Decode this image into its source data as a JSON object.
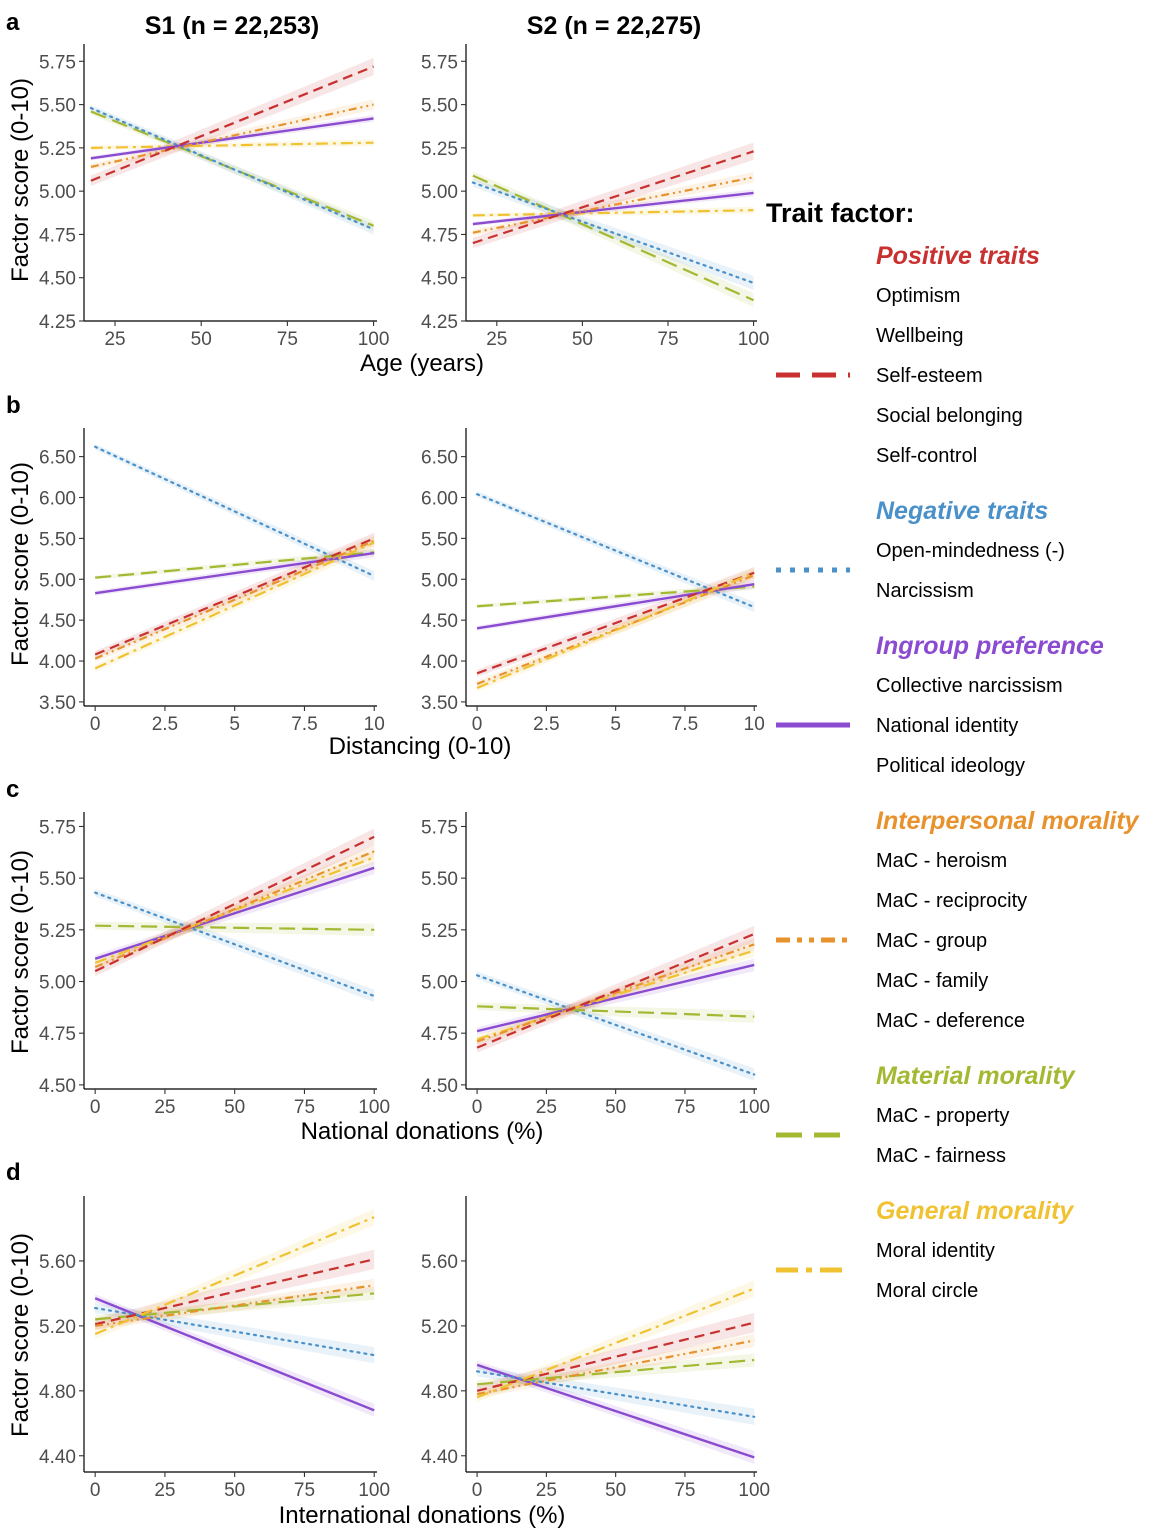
{
  "figure": {
    "columns": [
      "S1 (n = 22,253)",
      "S2 (n = 22,275)"
    ],
    "y_axis_label": "Factor score (0-10)"
  },
  "legend": {
    "title": "Trait factor:",
    "groups": [
      {
        "name": "Positive traits",
        "color": "#c8312f",
        "dash": "long-dash",
        "items": [
          "Optimism",
          "Wellbeing",
          "Self-esteem",
          "Social belonging",
          "Self-control"
        ]
      },
      {
        "name": "Negative traits",
        "color": "#4a90c9",
        "dash": "dotted",
        "items": [
          "Open-mindedness  (-)",
          "Narcissism"
        ]
      },
      {
        "name": "Ingroup preference",
        "color": "#8a4bd0",
        "dash": "solid",
        "items": [
          "Collective narcissism",
          "National identity",
          "Political ideology"
        ]
      },
      {
        "name": "Interpersonal morality",
        "color": "#e8922e",
        "dash": "dash-dot-dot",
        "items": [
          "MaC -  heroism",
          "MaC -  reciprocity",
          "MaC -  group",
          "MaC -  family",
          "MaC -  deference"
        ]
      },
      {
        "name": "Material morality",
        "color": "#a4b832",
        "dash": "very-long-dash",
        "items": [
          "MaC -  property",
          "MaC -  fairness"
        ]
      },
      {
        "name": "General morality",
        "color": "#f0c232",
        "dash": "long-dash-dot",
        "items": [
          "Moral identity",
          "Moral circle"
        ]
      }
    ]
  },
  "chart_data": [
    {
      "type": "line",
      "panel": "a",
      "column": "S1 (n = 22,253)",
      "xlabel": "Age (years)",
      "ylabel": "Factor score (0-10)",
      "xlim": [
        16,
        101
      ],
      "ylim": [
        4.25,
        5.85
      ],
      "xticks": [
        25,
        50,
        75,
        100
      ],
      "xtick_labels": [
        "25",
        "50",
        "75",
        "100"
      ],
      "yticks": [
        4.25,
        4.5,
        4.75,
        5.0,
        5.25,
        5.5,
        5.75
      ],
      "ytick_labels": [
        "4.25",
        "4.50",
        "4.75",
        "5.00",
        "5.25",
        "5.50",
        "5.75"
      ],
      "series": [
        {
          "group": "Material morality",
          "x": [
            18,
            100
          ],
          "y": [
            5.46,
            4.8
          ],
          "band": 0.03
        },
        {
          "group": "Negative traits",
          "x": [
            18,
            100
          ],
          "y": [
            5.48,
            4.78
          ],
          "band": 0.03
        },
        {
          "group": "General morality",
          "x": [
            18,
            100
          ],
          "y": [
            5.25,
            5.28
          ],
          "band": 0.02
        },
        {
          "group": "Ingroup preference",
          "x": [
            18,
            100
          ],
          "y": [
            5.19,
            5.42
          ],
          "band": 0.02
        },
        {
          "group": "Interpersonal morality",
          "x": [
            18,
            100
          ],
          "y": [
            5.14,
            5.5
          ],
          "band": 0.03
        },
        {
          "group": "Positive traits",
          "x": [
            18,
            100
          ],
          "y": [
            5.06,
            5.72
          ],
          "band": 0.05
        }
      ]
    },
    {
      "type": "line",
      "panel": "a",
      "column": "S2 (n = 22,275)",
      "xlabel": "Age (years)",
      "ylabel": "Factor score (0-10)",
      "xlim": [
        16,
        101
      ],
      "ylim": [
        4.25,
        5.85
      ],
      "xticks": [
        25,
        50,
        75,
        100
      ],
      "xtick_labels": [
        "25",
        "50",
        "75",
        "100"
      ],
      "yticks": [
        4.25,
        4.5,
        4.75,
        5.0,
        5.25,
        5.5,
        5.75
      ],
      "ytick_labels": [
        "4.25",
        "4.50",
        "4.75",
        "5.00",
        "5.25",
        "5.50",
        "5.75"
      ],
      "series": [
        {
          "group": "Material morality",
          "x": [
            18,
            100
          ],
          "y": [
            5.09,
            4.37
          ],
          "band": 0.04
        },
        {
          "group": "Negative traits",
          "x": [
            18,
            100
          ],
          "y": [
            5.05,
            4.47
          ],
          "band": 0.04
        },
        {
          "group": "General morality",
          "x": [
            18,
            100
          ],
          "y": [
            4.86,
            4.89
          ],
          "band": 0.02
        },
        {
          "group": "Ingroup preference",
          "x": [
            18,
            100
          ],
          "y": [
            4.81,
            4.99
          ],
          "band": 0.02
        },
        {
          "group": "Interpersonal morality",
          "x": [
            18,
            100
          ],
          "y": [
            4.76,
            5.08
          ],
          "band": 0.03
        },
        {
          "group": "Positive traits",
          "x": [
            18,
            100
          ],
          "y": [
            4.7,
            5.23
          ],
          "band": 0.05
        }
      ]
    },
    {
      "type": "line",
      "panel": "b",
      "column": "S1 (n = 22,253)",
      "xlabel": "Distancing (0-10)",
      "ylabel": "Factor score (0-10)",
      "xlim": [
        -0.4,
        10.1
      ],
      "ylim": [
        3.45,
        6.85
      ],
      "xticks": [
        0,
        2.5,
        5,
        7.5,
        10
      ],
      "xtick_labels": [
        "0",
        "2.5",
        "5",
        "7.5",
        "10"
      ],
      "yticks": [
        3.5,
        4.0,
        4.5,
        5.0,
        5.5,
        6.0,
        6.5
      ],
      "ytick_labels": [
        "3.50",
        "4.00",
        "4.50",
        "5.00",
        "5.50",
        "6.00",
        "6.50"
      ],
      "series": [
        {
          "group": "Negative traits",
          "x": [
            0,
            10
          ],
          "y": [
            6.62,
            5.04
          ],
          "band": 0.06
        },
        {
          "group": "Material morality",
          "x": [
            0,
            10
          ],
          "y": [
            5.02,
            5.33
          ],
          "band": 0.04
        },
        {
          "group": "Ingroup preference",
          "x": [
            0,
            10
          ],
          "y": [
            4.83,
            5.32
          ],
          "band": 0.05
        },
        {
          "group": "Positive traits",
          "x": [
            0,
            10
          ],
          "y": [
            4.08,
            5.5
          ],
          "band": 0.07
        },
        {
          "group": "Interpersonal morality",
          "x": [
            0,
            10
          ],
          "y": [
            4.03,
            5.47
          ],
          "band": 0.07
        },
        {
          "group": "General morality",
          "x": [
            0,
            10
          ],
          "y": [
            3.91,
            5.45
          ],
          "band": 0.07
        }
      ]
    },
    {
      "type": "line",
      "panel": "b",
      "column": "S2 (n = 22,275)",
      "xlabel": "Distancing (0-10)",
      "ylabel": "Factor score (0-10)",
      "xlim": [
        -0.4,
        10.1
      ],
      "ylim": [
        3.45,
        6.85
      ],
      "xticks": [
        0,
        2.5,
        5,
        7.5,
        10
      ],
      "xtick_labels": [
        "0",
        "2.5",
        "5",
        "7.5",
        "10"
      ],
      "yticks": [
        3.5,
        4.0,
        4.5,
        5.0,
        5.5,
        6.0,
        6.5
      ],
      "ytick_labels": [
        "3.50",
        "4.00",
        "4.50",
        "5.00",
        "5.50",
        "6.00",
        "6.50"
      ],
      "series": [
        {
          "group": "Negative traits",
          "x": [
            0,
            10
          ],
          "y": [
            6.04,
            4.66
          ],
          "band": 0.06
        },
        {
          "group": "Material morality",
          "x": [
            0,
            10
          ],
          "y": [
            4.67,
            4.91
          ],
          "band": 0.04
        },
        {
          "group": "Ingroup preference",
          "x": [
            0,
            10
          ],
          "y": [
            4.4,
            4.94
          ],
          "band": 0.05
        },
        {
          "group": "Positive traits",
          "x": [
            0,
            10
          ],
          "y": [
            3.85,
            5.08
          ],
          "band": 0.07
        },
        {
          "group": "Interpersonal morality",
          "x": [
            0,
            10
          ],
          "y": [
            3.72,
            5.05
          ],
          "band": 0.07
        },
        {
          "group": "General morality",
          "x": [
            0,
            10
          ],
          "y": [
            3.67,
            5.08
          ],
          "band": 0.07
        }
      ]
    },
    {
      "type": "line",
      "panel": "c",
      "column": "S1 (n = 22,253)",
      "xlabel": "National donations (%)",
      "ylabel": "Factor score (0-10)",
      "xlim": [
        -4,
        101
      ],
      "ylim": [
        4.48,
        5.82
      ],
      "xticks": [
        0,
        25,
        50,
        75,
        100
      ],
      "xtick_labels": [
        "0",
        "25",
        "50",
        "75",
        "100"
      ],
      "yticks": [
        4.5,
        4.75,
        5.0,
        5.25,
        5.5,
        5.75
      ],
      "ytick_labels": [
        "4.50",
        "4.75",
        "5.00",
        "5.25",
        "5.50",
        "5.75"
      ],
      "series": [
        {
          "group": "Negative traits",
          "x": [
            0,
            100
          ],
          "y": [
            5.43,
            4.93
          ],
          "band": 0.03
        },
        {
          "group": "Material morality",
          "x": [
            0,
            100
          ],
          "y": [
            5.27,
            5.25
          ],
          "band": 0.03
        },
        {
          "group": "Ingroup preference",
          "x": [
            0,
            100
          ],
          "y": [
            5.11,
            5.55
          ],
          "band": 0.03
        },
        {
          "group": "General morality",
          "x": [
            0,
            100
          ],
          "y": [
            5.09,
            5.6
          ],
          "band": 0.03
        },
        {
          "group": "Interpersonal morality",
          "x": [
            0,
            100
          ],
          "y": [
            5.07,
            5.63
          ],
          "band": 0.03
        },
        {
          "group": "Positive traits",
          "x": [
            0,
            100
          ],
          "y": [
            5.05,
            5.7
          ],
          "band": 0.04
        }
      ]
    },
    {
      "type": "line",
      "panel": "c",
      "column": "S2 (n = 22,275)",
      "xlabel": "National donations (%)",
      "ylabel": "Factor score (0-10)",
      "xlim": [
        -4,
        101
      ],
      "ylim": [
        4.48,
        5.82
      ],
      "xticks": [
        0,
        25,
        50,
        75,
        100
      ],
      "xtick_labels": [
        "0",
        "25",
        "50",
        "75",
        "100"
      ],
      "yticks": [
        4.5,
        4.75,
        5.0,
        5.25,
        5.5,
        5.75
      ],
      "ytick_labels": [
        "4.50",
        "4.75",
        "5.00",
        "5.25",
        "5.50",
        "5.75"
      ],
      "series": [
        {
          "group": "Negative traits",
          "x": [
            0,
            100
          ],
          "y": [
            5.03,
            4.55
          ],
          "band": 0.03
        },
        {
          "group": "Material morality",
          "x": [
            0,
            100
          ],
          "y": [
            4.88,
            4.83
          ],
          "band": 0.03
        },
        {
          "group": "Ingroup preference",
          "x": [
            0,
            100
          ],
          "y": [
            4.76,
            5.08
          ],
          "band": 0.03
        },
        {
          "group": "General morality",
          "x": [
            0,
            100
          ],
          "y": [
            4.72,
            5.15
          ],
          "band": 0.03
        },
        {
          "group": "Interpersonal morality",
          "x": [
            0,
            100
          ],
          "y": [
            4.71,
            5.18
          ],
          "band": 0.03
        },
        {
          "group": "Positive traits",
          "x": [
            0,
            100
          ],
          "y": [
            4.68,
            5.23
          ],
          "band": 0.04
        }
      ]
    },
    {
      "type": "line",
      "panel": "d",
      "column": "S1 (n = 22,253)",
      "xlabel": "International donations (%)",
      "ylabel": "Factor score (0-10)",
      "xlim": [
        -4,
        101
      ],
      "ylim": [
        4.3,
        6.0
      ],
      "xticks": [
        0,
        25,
        50,
        75,
        100
      ],
      "xtick_labels": [
        "0",
        "25",
        "50",
        "75",
        "100"
      ],
      "yticks": [
        4.4,
        4.8,
        5.2,
        5.6
      ],
      "ytick_labels": [
        "4.40",
        "4.80",
        "5.20",
        "5.60"
      ],
      "series": [
        {
          "group": "Ingroup preference",
          "x": [
            0,
            100
          ],
          "y": [
            5.37,
            4.68
          ],
          "band": 0.04
        },
        {
          "group": "Negative traits",
          "x": [
            0,
            100
          ],
          "y": [
            5.31,
            5.02
          ],
          "band": 0.05
        },
        {
          "group": "Material morality",
          "x": [
            0,
            100
          ],
          "y": [
            5.24,
            5.4
          ],
          "band": 0.04
        },
        {
          "group": "Positive traits",
          "x": [
            0,
            100
          ],
          "y": [
            5.21,
            5.61
          ],
          "band": 0.06
        },
        {
          "group": "Interpersonal morality",
          "x": [
            0,
            100
          ],
          "y": [
            5.2,
            5.45
          ],
          "band": 0.04
        },
        {
          "group": "General morality",
          "x": [
            0,
            100
          ],
          "y": [
            5.15,
            5.87
          ],
          "band": 0.05
        }
      ]
    },
    {
      "type": "line",
      "panel": "d",
      "column": "S2 (n = 22,275)",
      "xlabel": "International donations (%)",
      "ylabel": "Factor score (0-10)",
      "xlim": [
        -4,
        101
      ],
      "ylim": [
        4.3,
        6.0
      ],
      "xticks": [
        0,
        25,
        50,
        75,
        100
      ],
      "xtick_labels": [
        "0",
        "25",
        "50",
        "75",
        "100"
      ],
      "yticks": [
        4.4,
        4.8,
        5.2,
        5.6
      ],
      "ytick_labels": [
        "4.40",
        "4.80",
        "5.20",
        "5.60"
      ],
      "series": [
        {
          "group": "Ingroup preference",
          "x": [
            0,
            100
          ],
          "y": [
            4.96,
            4.39
          ],
          "band": 0.04
        },
        {
          "group": "Negative traits",
          "x": [
            0,
            100
          ],
          "y": [
            4.92,
            4.64
          ],
          "band": 0.05
        },
        {
          "group": "Material morality",
          "x": [
            0,
            100
          ],
          "y": [
            4.84,
            4.99
          ],
          "band": 0.04
        },
        {
          "group": "Positive traits",
          "x": [
            0,
            100
          ],
          "y": [
            4.8,
            5.22
          ],
          "band": 0.06
        },
        {
          "group": "Interpersonal morality",
          "x": [
            0,
            100
          ],
          "y": [
            4.78,
            5.11
          ],
          "band": 0.04
        },
        {
          "group": "General morality",
          "x": [
            0,
            100
          ],
          "y": [
            4.76,
            5.43
          ],
          "band": 0.05
        }
      ]
    }
  ]
}
